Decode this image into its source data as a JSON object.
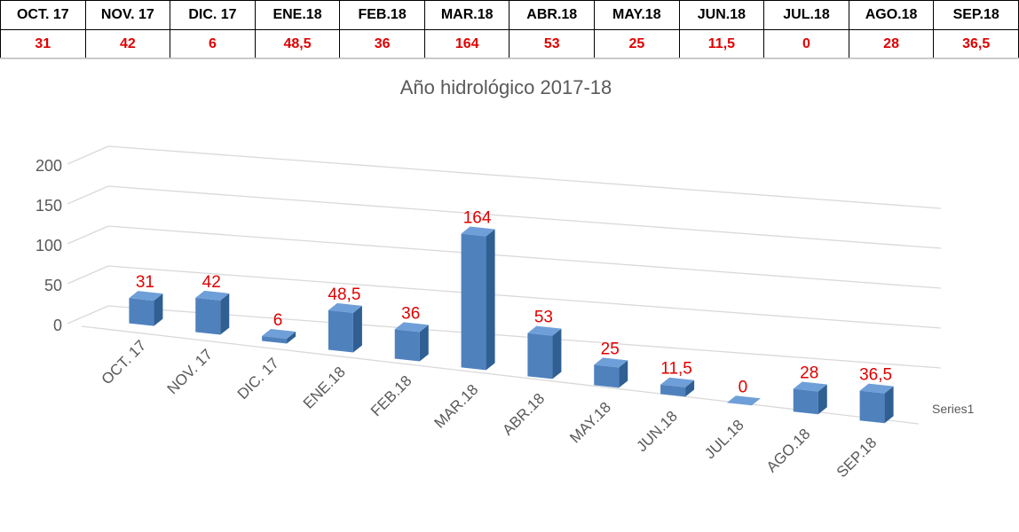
{
  "table": {
    "headers": [
      "OCT. 17",
      "NOV. 17",
      "DIC. 17",
      "ENE.18",
      "FEB.18",
      "MAR.18",
      "ABR.18",
      "MAY.18",
      "JUN.18",
      "JUL.18",
      "AGO.18",
      "SEP.18"
    ],
    "values": [
      "31",
      "42",
      "6",
      "48,5",
      "36",
      "164",
      "53",
      "25",
      "11,5",
      "0",
      "28",
      "36,5"
    ]
  },
  "chart_data": {
    "type": "bar",
    "title": "Año hidrológico 2017-18",
    "categories": [
      "OCT. 17",
      "NOV. 17",
      "DIC. 17",
      "ENE.18",
      "FEB.18",
      "MAR.18",
      "ABR.18",
      "MAY.18",
      "JUN.18",
      "JUL.18",
      "AGO.18",
      "SEP.18"
    ],
    "series": [
      {
        "name": "Series1",
        "values": [
          31,
          42,
          6,
          48.5,
          36,
          164,
          53,
          25,
          11.5,
          0,
          28,
          36.5
        ],
        "data_labels": [
          "31",
          "42",
          "6",
          "48,5",
          "36",
          "164",
          "53",
          "25",
          "11,5",
          "0",
          "28",
          "36,5"
        ]
      }
    ],
    "y_ticks": [
      "0",
      "50",
      "100",
      "150",
      "200"
    ],
    "ylim": [
      0,
      200
    ],
    "grid": true,
    "legend_position": "right",
    "colors": {
      "bar_front": "#4f81bd",
      "bar_side": "#2f5f93",
      "bar_top": "#6f9fd8",
      "data_label": "#e00000",
      "axis_text": "#595959",
      "grid": "#d9d9d9"
    }
  }
}
